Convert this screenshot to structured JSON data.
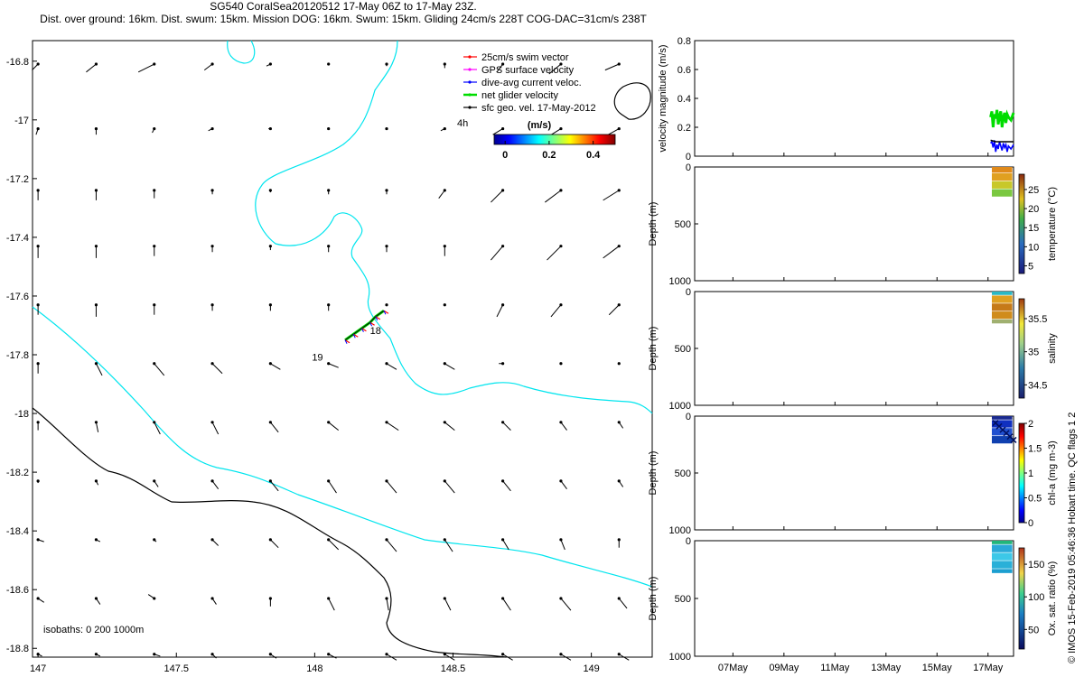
{
  "header": {
    "line1": "SG540 CoralSea20120512 17-May 06Z to 17-May 23Z.",
    "line2": "Dist. over ground: 16km. Dist. swum: 15km. Mission DOG: 16km. Swum: 15km. Gliding 24cm/s 228T COG-DAC=31cm/s 238T"
  },
  "credit": "© IMOS 15-Feb-2019 05:46:36 Hobart time. QC flags 1  2",
  "chart_data": [
    {
      "type": "scatter",
      "panel": "map",
      "title": "",
      "xlabel": "",
      "ylabel": "",
      "xlim": [
        146.98,
        149.22
      ],
      "ylim": [
        -18.83,
        -16.73
      ],
      "x_ticks": [
        "147",
        "147.5",
        "148",
        "148.5",
        "149"
      ],
      "x_tick_values": [
        147,
        147.5,
        148,
        148.5,
        149
      ],
      "y_ticks": [
        "-16.8",
        "-17",
        "-17.2",
        "-17.4",
        "-17.6",
        "-17.8",
        "-18",
        "-18.2",
        "-18.4",
        "-18.6",
        "-18.8"
      ],
      "y_tick_values": [
        -16.8,
        -17,
        -17.2,
        -17.4,
        -17.6,
        -17.8,
        -18,
        -18.2,
        -18.4,
        -18.6,
        -18.8
      ],
      "legend": {
        "placement": "top-right",
        "entries": [
          {
            "label": "25cm/s swim vector",
            "color": "#ff0000"
          },
          {
            "label": "GPS surface velocity",
            "color": "#ff00ff"
          },
          {
            "label": "dive-avg current veloc.",
            "color": "#0000ff"
          },
          {
            "label": "net glider velocity",
            "color": "#00dd00"
          },
          {
            "label": "sfc geo. vel. 17-May-2012",
            "color": "#000000"
          }
        ]
      },
      "time_marker_label": "4h",
      "colorbar": {
        "label": "(m/s)",
        "ticks": [
          "0",
          "0.2",
          "0.4"
        ],
        "tick_values": [
          0,
          0.2,
          0.4
        ],
        "range": [
          -0.05,
          0.5
        ]
      },
      "isobaths_label": "isobaths: 0   200  1000m",
      "day_labels": [
        {
          "text": "18",
          "lon": 148.2,
          "lat": -17.73
        },
        {
          "text": "19",
          "lon": 147.99,
          "lat": -17.82
        }
      ],
      "geo_velocity_grid": {
        "lons": [
          147.0,
          147.21,
          147.42,
          147.63,
          147.84,
          148.05,
          148.26,
          148.47,
          148.68,
          148.89,
          149.1
        ],
        "lats": [
          -16.81,
          -17.03,
          -17.24,
          -17.43,
          -17.63,
          -17.83,
          -18.03,
          -18.23,
          -18.43,
          -18.63,
          -18.82
        ],
        "rows_u_cms": [
          [
            -3,
            -5,
            -8,
            -4,
            -2,
            0,
            0,
            0,
            -3,
            -6,
            -7
          ],
          [
            -1,
            0,
            -1,
            -2,
            -1,
            0,
            0,
            -2,
            -5,
            -8,
            -9
          ],
          [
            0,
            0,
            0,
            0,
            0,
            0,
            0,
            -3,
            -6,
            -8,
            -8
          ],
          [
            0,
            0,
            0,
            0,
            0,
            0,
            0,
            0,
            -6,
            -7,
            -8
          ],
          [
            0,
            0,
            0,
            0,
            0,
            0,
            0,
            0,
            -3,
            -5,
            -5
          ],
          [
            0,
            3,
            5,
            5,
            5,
            5,
            5,
            5,
            -2,
            0,
            0
          ],
          [
            0,
            1,
            3,
            3,
            4,
            5,
            6,
            5,
            4,
            3,
            2
          ],
          [
            0,
            1,
            2,
            3,
            4,
            4,
            5,
            5,
            4,
            3,
            2
          ],
          [
            3,
            2,
            1,
            3,
            4,
            5,
            5,
            4,
            3,
            2,
            0
          ],
          [
            3,
            2,
            -3,
            2,
            0,
            3,
            1,
            3,
            4,
            5,
            4
          ],
          [
            2,
            2,
            3,
            2,
            3,
            4,
            5,
            5,
            5,
            5,
            5
          ]
        ],
        "rows_v_cms": [
          [
            -3,
            -4,
            -4,
            -3,
            -1,
            0,
            -1,
            -2,
            -4,
            -5,
            -3
          ],
          [
            -3,
            -3,
            -2,
            -1,
            0,
            0,
            0,
            -1,
            -3,
            -5,
            -5
          ],
          [
            -5,
            -5,
            -4,
            -2,
            -1,
            -2,
            -2,
            -4,
            -6,
            -6,
            -5
          ],
          [
            -6,
            -6,
            -5,
            -3,
            -2,
            -3,
            -3,
            -5,
            -7,
            -7,
            -6
          ],
          [
            -5,
            -6,
            -5,
            -3,
            -3,
            -3,
            0,
            0,
            -6,
            -6,
            -5
          ],
          [
            -5,
            -6,
            -6,
            -5,
            -3,
            -2,
            -3,
            -3,
            0,
            0,
            0
          ],
          [
            -4,
            -5,
            -6,
            -6,
            -5,
            -4,
            -4,
            -4,
            -4,
            -4,
            -3
          ],
          [
            -1,
            -2,
            -3,
            -4,
            -5,
            -6,
            -6,
            -6,
            -5,
            -4,
            -3
          ],
          [
            -1,
            -1,
            -1,
            -3,
            -4,
            -5,
            -6,
            -6,
            -5,
            -5,
            -4
          ],
          [
            -2,
            -3,
            2,
            -3,
            -4,
            -6,
            -6,
            -6,
            -6,
            -6,
            -5
          ],
          [
            -1,
            -1,
            -1,
            -2,
            -2,
            -2,
            -3,
            -3,
            -3,
            -3,
            -3
          ]
        ]
      },
      "glider_track": {
        "lon": [
          148.11,
          148.14,
          148.17,
          148.2,
          148.22,
          148.25
        ],
        "lat": [
          -17.75,
          -17.73,
          -17.71,
          -17.69,
          -17.67,
          -17.65
        ]
      }
    },
    {
      "type": "line",
      "panel": "velocity",
      "ylabel": "velocity magnitude (m/s)",
      "ylim": [
        0,
        0.8
      ],
      "y_ticks": [
        "0",
        "0.2",
        "0.4",
        "0.6",
        "0.8"
      ],
      "y_tick_values": [
        0,
        0.2,
        0.4,
        0.6,
        0.8
      ],
      "xlim": [
        5.5,
        18.0
      ],
      "x_tick_values": [
        7,
        9,
        11,
        13,
        15,
        17
      ],
      "series": [
        {
          "color": "#00dd00",
          "x": [
            17.1,
            17.15,
            17.2,
            17.25,
            17.3,
            17.35,
            17.4,
            17.45,
            17.5,
            17.55,
            17.6,
            17.65,
            17.7,
            17.75,
            17.8,
            17.9,
            18.0
          ],
          "values": [
            0.27,
            0.31,
            0.2,
            0.29,
            0.26,
            0.32,
            0.22,
            0.28,
            0.31,
            0.2,
            0.27,
            0.3,
            0.23,
            0.29,
            0.27,
            0.25,
            0.3
          ]
        },
        {
          "color": "#0000ff",
          "x": [
            17.1,
            17.15,
            17.2,
            17.25,
            17.3,
            17.35,
            17.4,
            17.45,
            17.5,
            17.55,
            17.6,
            17.65,
            17.7,
            17.75,
            17.8,
            17.9,
            18.0
          ],
          "values": [
            0.09,
            0.1,
            0.06,
            0.11,
            0.03,
            0.08,
            0.05,
            0.1,
            0.07,
            0.04,
            0.09,
            0.06,
            0.08,
            0.03,
            0.07,
            0.05,
            0.08
          ]
        },
        {
          "color": "#000000",
          "x": [
            17.1,
            17.3,
            17.5,
            17.7,
            18.0
          ],
          "values": [
            0.11,
            0.1,
            0.1,
            0.1,
            0.1
          ]
        }
      ]
    },
    {
      "type": "heatmap",
      "panel": "temperature",
      "ylabel": "Depth (m)",
      "ylim": [
        1000,
        0
      ],
      "y_ticks": [
        "0",
        "500",
        "1000"
      ],
      "y_tick_values": [
        0,
        500,
        1000
      ],
      "colorbar": {
        "label": "temperature (°C)",
        "ticks": [
          "5",
          "10",
          "15",
          "20",
          "25"
        ],
        "tick_values": [
          5,
          10,
          15,
          20,
          25
        ],
        "range": [
          3,
          29
        ]
      },
      "depth_bins": [
        50,
        120,
        190,
        260
      ],
      "values_by_depth": [
        27,
        26,
        23,
        18
      ]
    },
    {
      "type": "heatmap",
      "panel": "salinity",
      "ylabel": "Depth (m)",
      "ylim": [
        1000,
        0
      ],
      "y_ticks": [
        "0",
        "500",
        "1000"
      ],
      "y_tick_values": [
        0,
        500,
        1000
      ],
      "colorbar": {
        "label": "salinity",
        "ticks": [
          "34.5",
          "35",
          "35.5"
        ],
        "tick_values": [
          34.5,
          35,
          35.5
        ],
        "range": [
          34.3,
          35.8
        ]
      },
      "depth_bins": [
        30,
        100,
        170,
        240,
        280
      ],
      "values_by_depth": [
        35.05,
        35.55,
        35.7,
        35.6,
        35.35
      ]
    },
    {
      "type": "heatmap",
      "panel": "chl-a",
      "ylabel": "Depth (m)",
      "ylim": [
        1000,
        0
      ],
      "y_ticks": [
        "0",
        "500",
        "1000"
      ],
      "y_tick_values": [
        0,
        500,
        1000
      ],
      "colorbar": {
        "label": "chl-a (mg m-3)",
        "ticks": [
          "0",
          "0.5",
          "1",
          "1.5",
          "2"
        ],
        "tick_values": [
          0,
          0.5,
          1,
          1.5,
          2
        ],
        "range": [
          0,
          2
        ]
      },
      "depth_bins": [
        30,
        100,
        170,
        240
      ],
      "values_by_depth": [
        0.05,
        0.1,
        0.15,
        0.2
      ]
    },
    {
      "type": "heatmap",
      "panel": "oxygen",
      "ylabel": "Depth (m)",
      "ylim": [
        1000,
        0
      ],
      "y_ticks": [
        "0",
        "500",
        "1000"
      ],
      "y_tick_values": [
        0,
        500,
        1000
      ],
      "x_ticks": [
        "07May",
        "09May",
        "11May",
        "13May",
        "15May",
        "17May"
      ],
      "colorbar": {
        "label": "Ox. sat. ratio (%)",
        "ticks": [
          "50",
          "100",
          "150"
        ],
        "tick_values": [
          50,
          100,
          150
        ],
        "range": [
          20,
          175
        ]
      },
      "depth_bins": [
        30,
        100,
        170,
        240,
        280
      ],
      "values_by_depth": [
        95,
        95,
        80,
        70,
        65
      ]
    }
  ]
}
